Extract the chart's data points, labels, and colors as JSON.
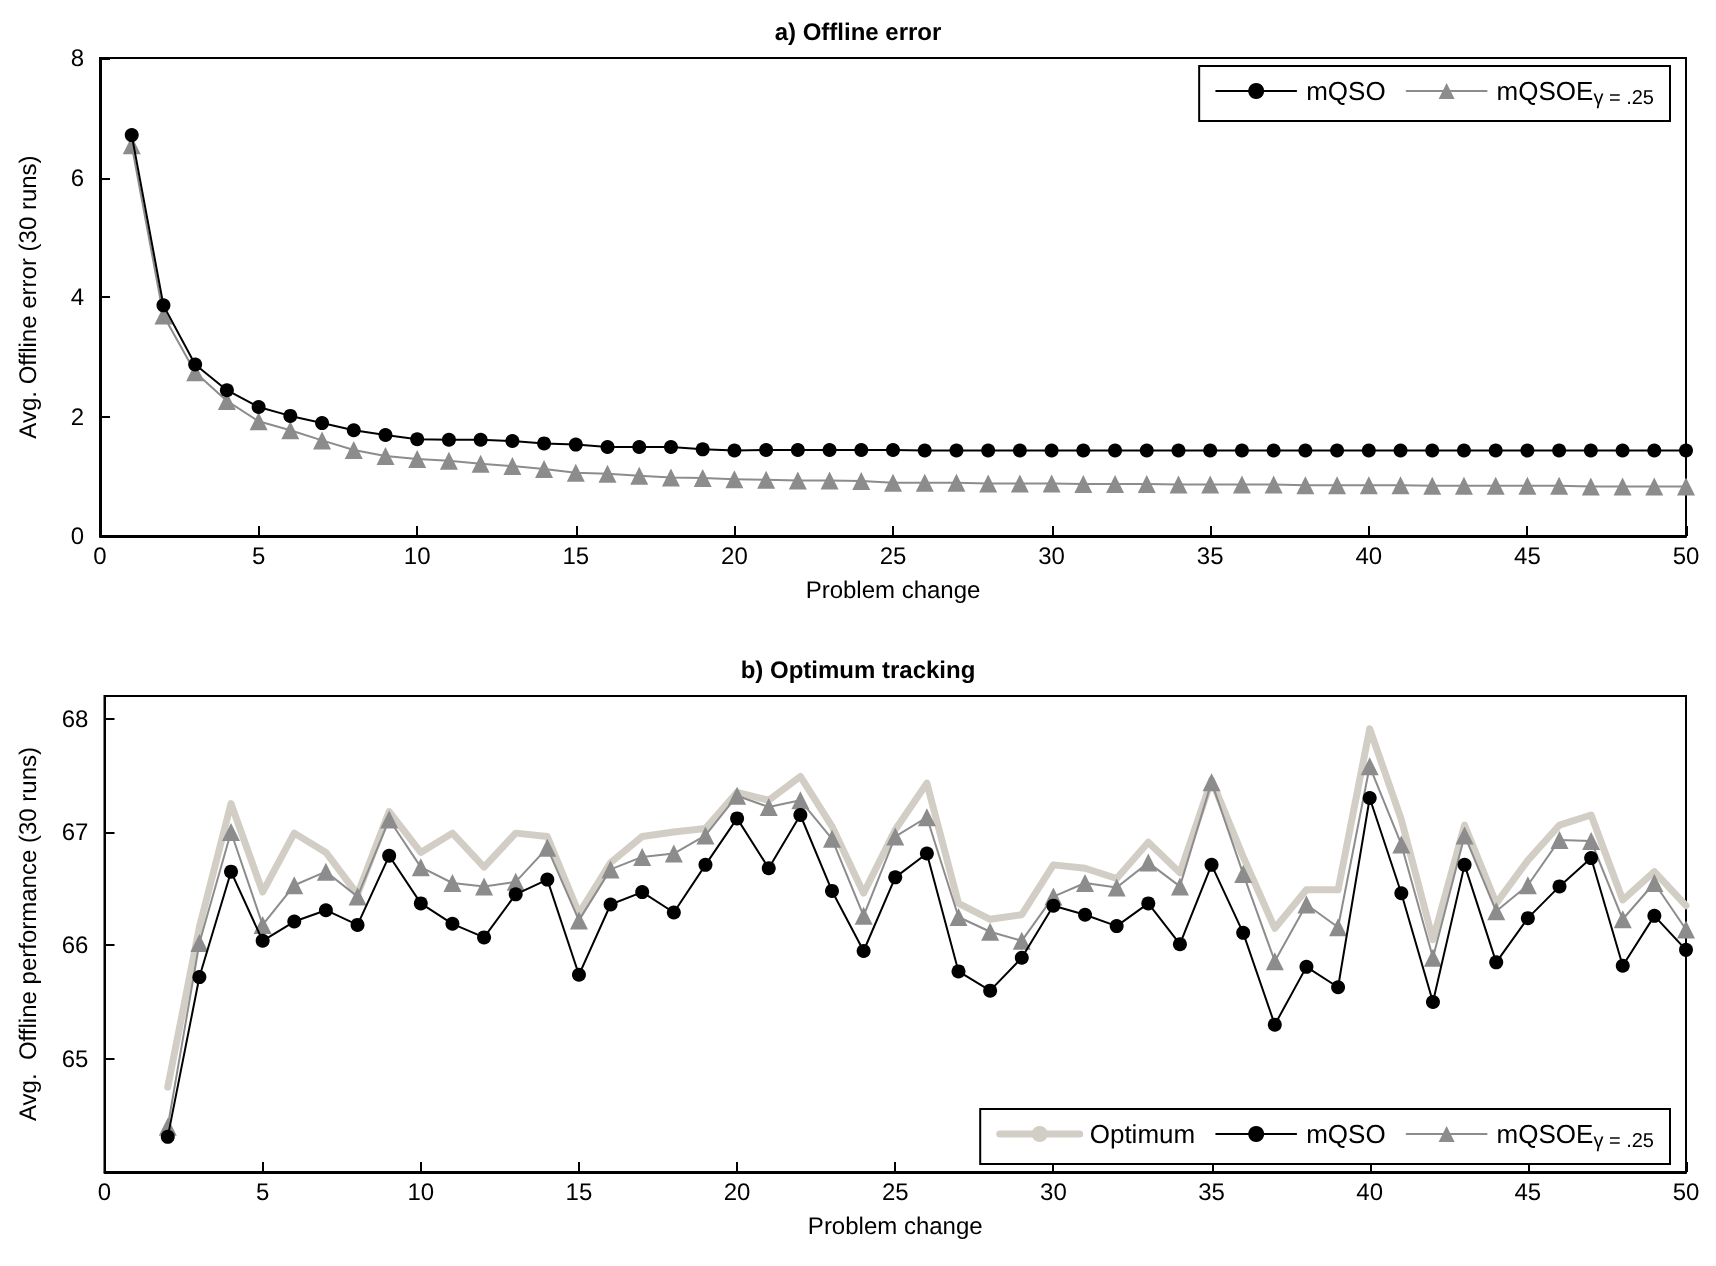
{
  "chart_data": [
    {
      "type": "line",
      "title": "a) Offline error",
      "xlabel": "Problem change",
      "ylabel": "Avg. Offline error (30 runs)",
      "xlim": [
        0,
        50
      ],
      "ylim": [
        0,
        8
      ],
      "xticks": [
        0,
        5,
        10,
        15,
        20,
        25,
        30,
        35,
        40,
        45,
        50
      ],
      "yticks": [
        0,
        2,
        4,
        6,
        8
      ],
      "grid": false,
      "legend": "top right",
      "x": [
        1,
        2,
        3,
        4,
        5,
        6,
        7,
        8,
        9,
        10,
        11,
        12,
        13,
        14,
        15,
        16,
        17,
        18,
        19,
        20,
        21,
        22,
        23,
        24,
        25,
        26,
        27,
        28,
        29,
        30,
        31,
        32,
        33,
        34,
        35,
        36,
        37,
        38,
        39,
        40,
        41,
        42,
        43,
        44,
        45,
        46,
        47,
        48,
        49,
        50
      ],
      "series": [
        {
          "name": "mQSO",
          "color": "#000000",
          "marker": "circle",
          "values": [
            6.71,
            3.86,
            2.87,
            2.44,
            2.16,
            2.01,
            1.89,
            1.77,
            1.69,
            1.62,
            1.61,
            1.61,
            1.59,
            1.55,
            1.53,
            1.49,
            1.49,
            1.49,
            1.45,
            1.43,
            1.44,
            1.44,
            1.44,
            1.44,
            1.44,
            1.43,
            1.43,
            1.43,
            1.43,
            1.43,
            1.43,
            1.43,
            1.43,
            1.43,
            1.43,
            1.43,
            1.43,
            1.43,
            1.43,
            1.43,
            1.43,
            1.43,
            1.43,
            1.43,
            1.43,
            1.43,
            1.43,
            1.43,
            1.43,
            1.43
          ]
        },
        {
          "name": "mQSOE$_{γ = .25}$",
          "color": "#8c8c8c",
          "marker": "triangle",
          "values": [
            6.54,
            3.69,
            2.74,
            2.26,
            1.92,
            1.77,
            1.6,
            1.44,
            1.34,
            1.29,
            1.26,
            1.21,
            1.17,
            1.12,
            1.06,
            1.04,
            1.01,
            0.98,
            0.97,
            0.95,
            0.94,
            0.93,
            0.93,
            0.92,
            0.89,
            0.89,
            0.89,
            0.88,
            0.88,
            0.88,
            0.87,
            0.87,
            0.87,
            0.86,
            0.86,
            0.86,
            0.86,
            0.85,
            0.85,
            0.85,
            0.85,
            0.84,
            0.84,
            0.84,
            0.84,
            0.84,
            0.83,
            0.83,
            0.83,
            0.83
          ]
        }
      ]
    },
    {
      "type": "line",
      "title": "b) Optimum tracking",
      "xlabel": "Problem change",
      "ylabel": "Avg.  Offline performance (30 runs)",
      "xlim": [
        0,
        50
      ],
      "ylim": [
        64,
        68.2
      ],
      "xticks": [
        0,
        5,
        10,
        15,
        20,
        25,
        30,
        35,
        40,
        45,
        50
      ],
      "yticks": [
        65,
        66,
        67,
        68
      ],
      "grid": false,
      "legend": "bottom right",
      "x": [
        2,
        3,
        4,
        5,
        6,
        7,
        8,
        9,
        10,
        11,
        12,
        13,
        14,
        15,
        16,
        17,
        18,
        19,
        20,
        21,
        22,
        23,
        24,
        25,
        26,
        27,
        28,
        29,
        30,
        31,
        32,
        33,
        34,
        35,
        36,
        37,
        38,
        39,
        40,
        41,
        42,
        43,
        44,
        45,
        46,
        47,
        48,
        49,
        50
      ],
      "series": [
        {
          "name": "Optimum",
          "color": "#d2cec6",
          "marker": "none",
          "values": [
            64.75,
            66.16,
            67.25,
            66.47,
            66.99,
            66.82,
            66.45,
            67.18,
            66.82,
            66.99,
            66.69,
            66.99,
            66.96,
            66.28,
            66.73,
            66.96,
            67.0,
            67.03,
            67.35,
            67.28,
            67.49,
            67.05,
            66.46,
            67.02,
            67.43,
            66.37,
            66.23,
            66.27,
            66.71,
            66.68,
            66.59,
            66.91,
            66.64,
            67.46,
            66.78,
            66.15,
            66.49,
            66.49,
            67.91,
            67.11,
            66.05,
            67.06,
            66.37,
            66.75,
            67.06,
            67.15,
            66.4,
            66.65,
            66.35
          ]
        },
        {
          "name": "mQSO",
          "color": "#000000",
          "marker": "circle",
          "values": [
            64.31,
            65.72,
            66.65,
            66.04,
            66.21,
            66.31,
            66.18,
            66.79,
            66.37,
            66.19,
            66.07,
            66.45,
            66.58,
            65.74,
            66.36,
            66.47,
            66.29,
            66.71,
            67.12,
            66.68,
            67.15,
            66.48,
            65.95,
            66.6,
            66.81,
            65.77,
            65.6,
            65.89,
            66.35,
            66.27,
            66.17,
            66.37,
            66.01,
            66.71,
            66.11,
            65.3,
            65.81,
            65.63,
            67.3,
            66.46,
            65.5,
            66.71,
            65.85,
            66.24,
            66.52,
            66.77,
            65.82,
            66.26,
            65.96
          ]
        },
        {
          "name": "mQSOE$_{γ = .25}$",
          "color": "#8c8c8c",
          "marker": "triangle",
          "values": [
            64.4,
            66.02,
            67.0,
            66.18,
            66.53,
            66.65,
            66.43,
            67.11,
            66.69,
            66.55,
            66.52,
            66.56,
            66.86,
            66.22,
            66.67,
            66.78,
            66.81,
            66.97,
            67.32,
            67.22,
            67.28,
            66.94,
            66.26,
            66.96,
            67.13,
            66.25,
            66.12,
            66.04,
            66.43,
            66.55,
            66.51,
            66.73,
            66.52,
            67.44,
            66.63,
            65.86,
            66.36,
            66.16,
            67.58,
            66.89,
            65.89,
            66.97,
            66.3,
            66.53,
            66.93,
            66.92,
            66.23,
            66.55,
            66.14
          ]
        }
      ]
    }
  ]
}
